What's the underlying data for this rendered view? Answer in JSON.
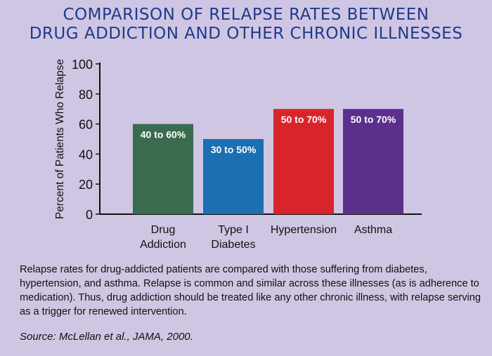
{
  "page": {
    "background": "#cfc6e3",
    "title_color": "#1f3a8a"
  },
  "chart_data": {
    "type": "bar",
    "title_lines": [
      "COMPARISON OF RELAPSE RATES BETWEEN",
      "DRUG ADDICTION AND OTHER CHRONIC ILLNESSES"
    ],
    "xlabel": "",
    "ylabel": "Percent of Patients Who Relapse",
    "ylim": [
      0,
      100
    ],
    "yticks": [
      0,
      20,
      40,
      60,
      80,
      100
    ],
    "grid": false,
    "categories": [
      [
        "Drug",
        "Addiction"
      ],
      [
        "Type I",
        "Diabetes"
      ],
      [
        "Hypertension"
      ],
      [
        "Asthma"
      ]
    ],
    "values": [
      60,
      50,
      70,
      70
    ],
    "data_labels": [
      "40 to 60%",
      "30 to 50%",
      "50 to 70%",
      "50 to 70%"
    ],
    "colors": [
      "#3a6b4e",
      "#1b6fb3",
      "#d7252b",
      "#5b2f8c"
    ]
  },
  "caption": "Relapse rates for drug-addicted patients are compared with those suffering from diabetes, hypertension, and asthma. Relapse is common and similar across these illnesses (as is adherence to medication). Thus, drug addiction should be treated like any other chronic illness, with relapse serving as a trigger for renewed intervention.",
  "source": "Source: McLellan et al., JAMA, 2000."
}
